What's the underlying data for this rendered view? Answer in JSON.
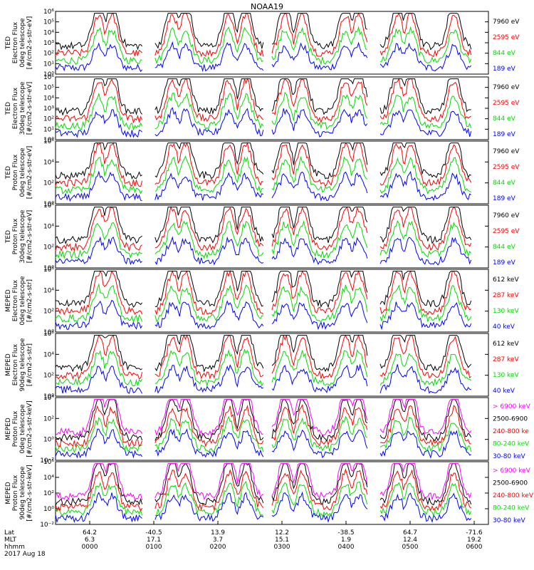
{
  "title": "NOAA19",
  "colors": {
    "black": "#000000",
    "red": "#ff0000",
    "green": "#00dd00",
    "blue": "#0000ff",
    "magenta": "#ff00ff"
  },
  "chart_data": {
    "type": "line",
    "title": "NOAA19",
    "x": {
      "start": "00:00",
      "end": "06:00",
      "hhmm_ticks": [
        "0000",
        "0100",
        "0200",
        "0300",
        "0400",
        "0500",
        "0600"
      ],
      "rows": {
        "lat": [
          "64.2",
          "-40.5",
          "13.9",
          "12.2",
          "-38.5",
          "64.7",
          "-71.6"
        ],
        "mlt": [
          "6.3",
          "17.1",
          "3.7",
          "15.1",
          "1.9",
          "12.4",
          "19.2"
        ]
      },
      "row_labels": {
        "lat": "Lat",
        "mlt": "MLT",
        "hhmm": "hhmm"
      },
      "date": "2017 Aug 18"
    },
    "panels": [
      {
        "ylabel": [
          "TED",
          "Electron Flux",
          "0deg telescope",
          "[#/cm2-s-str-eV]"
        ],
        "ticks": [
          "10⁰",
          "10¹",
          "10²",
          "10³",
          "10⁴",
          "10⁵",
          "10⁶"
        ],
        "ylim": [
          1,
          1000000
        ],
        "log": true,
        "series": [
          {
            "name": "7960 eV",
            "color": "#000000"
          },
          {
            "name": "2595 eV",
            "color": "#ff0000"
          },
          {
            "name": "844 eV",
            "color": "#00dd00"
          },
          {
            "name": "189 eV",
            "color": "#0000ff"
          }
        ]
      },
      {
        "ylabel": [
          "TED",
          "Electron Flux",
          "30deg telescope",
          "[#/cm2-s-str-eV]"
        ],
        "ticks": [
          "10⁰",
          "10¹",
          "10²",
          "10³",
          "10⁴",
          "10⁵",
          "10⁶"
        ],
        "ylim": [
          1,
          1000000
        ],
        "log": true,
        "series": [
          {
            "name": "7960 eV",
            "color": "#000000"
          },
          {
            "name": "2595 eV",
            "color": "#ff0000"
          },
          {
            "name": "844 eV",
            "color": "#00dd00"
          },
          {
            "name": "189 eV",
            "color": "#0000ff"
          }
        ]
      },
      {
        "ylabel": [
          "TED",
          "Proton Flux",
          "0deg telescope",
          "[#/cm2-s-str-eV]"
        ],
        "ticks": [
          "10⁰",
          "10²",
          "10⁴",
          "10⁶"
        ],
        "ylim": [
          1,
          1000000
        ],
        "log": true,
        "series": [
          {
            "name": "7960 eV",
            "color": "#000000"
          },
          {
            "name": "2595 eV",
            "color": "#ff0000"
          },
          {
            "name": "844 eV",
            "color": "#00dd00"
          },
          {
            "name": "189 eV",
            "color": "#0000ff"
          }
        ]
      },
      {
        "ylabel": [
          "TED",
          "Proton Flux",
          "30deg telescope",
          "[#/cm2-s-str-eV]"
        ],
        "ticks": [
          "10⁰",
          "10²",
          "10⁴",
          "10⁶"
        ],
        "ylim": [
          1,
          1000000
        ],
        "log": true,
        "series": [
          {
            "name": "7960 eV",
            "color": "#000000"
          },
          {
            "name": "2595 eV",
            "color": "#ff0000"
          },
          {
            "name": "844 eV",
            "color": "#00dd00"
          },
          {
            "name": "189 eV",
            "color": "#0000ff"
          }
        ]
      },
      {
        "ylabel": [
          "MEPED",
          "Electron Flux",
          "0deg telescope",
          "[#/cm2-s-str]"
        ],
        "ticks": [
          "10⁰",
          "10²",
          "10⁴",
          "10⁶"
        ],
        "ylim": [
          1,
          1000000
        ],
        "log": true,
        "series": [
          {
            "name": "612 keV",
            "color": "#000000"
          },
          {
            "name": "287 keV",
            "color": "#ff0000"
          },
          {
            "name": "130 keV",
            "color": "#00dd00"
          },
          {
            "name": "40 keV",
            "color": "#0000ff"
          }
        ]
      },
      {
        "ylabel": [
          "MEPED",
          "Electron Flux",
          "90deg telescope",
          "[#/cm2-s-str]"
        ],
        "ticks": [
          "10⁰",
          "10²",
          "10⁴",
          "10⁶"
        ],
        "ylim": [
          1,
          1000000
        ],
        "log": true,
        "series": [
          {
            "name": "612 keV",
            "color": "#000000"
          },
          {
            "name": "287 keV",
            "color": "#ff0000"
          },
          {
            "name": "130 keV",
            "color": "#00dd00"
          },
          {
            "name": "40 keV",
            "color": "#0000ff"
          }
        ]
      },
      {
        "ylabel": [
          "MEPED",
          "Proton Flux",
          "0deg telescope",
          "[#/cm2-s-str-keV]"
        ],
        "ticks": [
          "10⁻²",
          "10⁰",
          "10²",
          "10⁴"
        ],
        "ylim": [
          0.01,
          100000
        ],
        "log": true,
        "series": [
          {
            "name": "> 6900 keV",
            "color": "#ff00ff"
          },
          {
            "name": "2500-6900",
            "color": "#000000"
          },
          {
            "name": "240-800 ke",
            "color": "#ff0000"
          },
          {
            "name": "80-240 keV",
            "color": "#00dd00"
          },
          {
            "name": "30-80 keV",
            "color": "#0000ff"
          }
        ]
      },
      {
        "ylabel": [
          "MEPED",
          "Proton Flux",
          "90deg telescope",
          "[#/cm2-s-str-keV]"
        ],
        "ticks": [
          "10⁻²",
          "10⁰",
          "10²",
          "10⁴",
          "10⁶"
        ],
        "ylim": [
          0.01,
          1000000
        ],
        "log": true,
        "series": [
          {
            "name": "> 6900 keV",
            "color": "#ff00ff"
          },
          {
            "name": "2500-6900",
            "color": "#000000"
          },
          {
            "name": "240-800 keV",
            "color": "#ff0000"
          },
          {
            "name": "80-240 keV",
            "color": "#00dd00"
          },
          {
            "name": "30-80 keV",
            "color": "#0000ff"
          }
        ]
      }
    ]
  }
}
